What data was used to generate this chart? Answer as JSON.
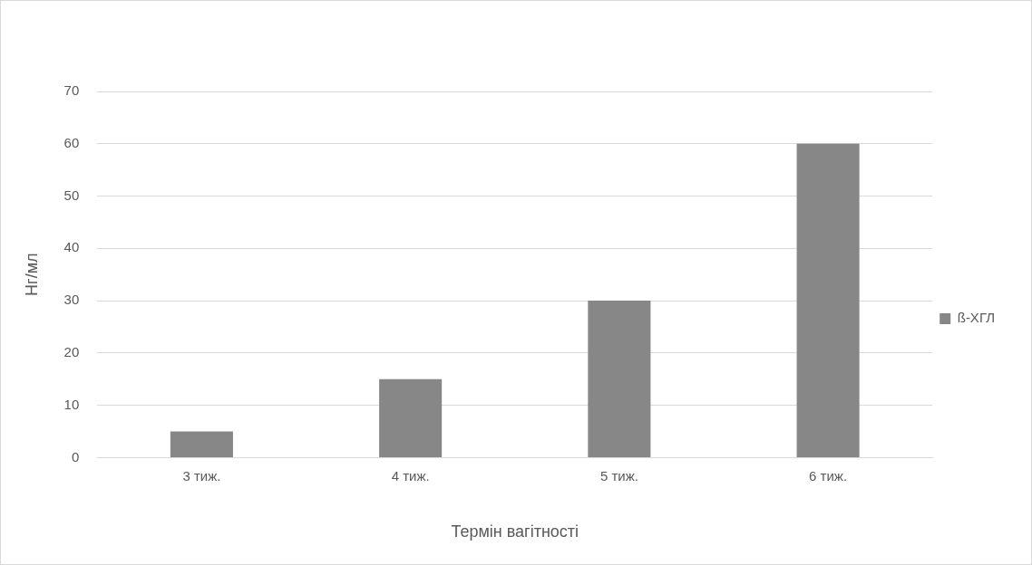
{
  "chart_data": {
    "type": "bar",
    "xlabel": "Термін вагітності",
    "ylabel": "Нг/мл",
    "categories": [
      "3 тиж.",
      "4 тиж.",
      "5 тиж.",
      "6 тиж."
    ],
    "series": [
      {
        "name": "ß-ХГЛ",
        "color": "#878787",
        "values": [
          5,
          15,
          30,
          60
        ]
      }
    ],
    "ylim": [
      0,
      70
    ],
    "yticks": [
      0,
      10,
      20,
      30,
      40,
      50,
      60,
      70
    ],
    "grid": "y",
    "legend": "right"
  }
}
